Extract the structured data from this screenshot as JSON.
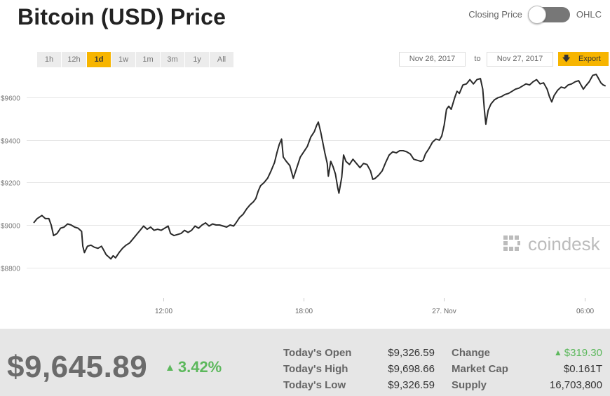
{
  "header": {
    "title": "Bitcoin (USD) Price",
    "toggle_left_label": "Closing Price",
    "toggle_right_label": "OHLC"
  },
  "ranges": [
    "1h",
    "12h",
    "1d",
    "1w",
    "1m",
    "3m",
    "1y",
    "All"
  ],
  "active_range": "1d",
  "date_range": {
    "from": "Nov 26, 2017",
    "to_label": "to",
    "to": "Nov 27, 2017"
  },
  "export": {
    "label": "Export",
    "icon": "download-arrow-icon"
  },
  "watermark": {
    "text": "coindesk",
    "color": "#bcbcbc"
  },
  "colors": {
    "accent": "#f7b500",
    "line": "#2a2a2a",
    "positive": "#5cb85c",
    "footer_bg": "#e6e6e6"
  },
  "chart_data": {
    "type": "line",
    "title": "",
    "xlabel": "",
    "ylabel": "",
    "x_unit": "hour offset from 2017-11-26 00:00",
    "x_ticks": [
      {
        "x": 12,
        "label": "12:00"
      },
      {
        "x": 18,
        "label": "18:00"
      },
      {
        "x": 24,
        "label": "27. Nov"
      },
      {
        "x": 30,
        "label": "06:00"
      }
    ],
    "y_ticks": [
      {
        "y": 8800,
        "label": "$8800"
      },
      {
        "y": 9000,
        "label": "$9000"
      },
      {
        "y": 9200,
        "label": "$9200"
      },
      {
        "y": 9400,
        "label": "$9400"
      },
      {
        "y": 9600,
        "label": "$9600"
      }
    ],
    "xlim": [
      6.45,
      31.0
    ],
    "ylim": [
      8640,
      9730
    ],
    "grid": true,
    "series": [
      {
        "values": [
          [
            6.45,
            9010
          ],
          [
            6.6,
            9030
          ],
          [
            6.8,
            9045
          ],
          [
            6.95,
            9030
          ],
          [
            7.1,
            9030
          ],
          [
            7.2,
            9000
          ],
          [
            7.3,
            8950
          ],
          [
            7.45,
            8960
          ],
          [
            7.6,
            8985
          ],
          [
            7.75,
            8990
          ],
          [
            7.9,
            9005
          ],
          [
            8.05,
            9000
          ],
          [
            8.2,
            8990
          ],
          [
            8.35,
            8985
          ],
          [
            8.5,
            8970
          ],
          [
            8.55,
            8900
          ],
          [
            8.62,
            8870
          ],
          [
            8.75,
            8900
          ],
          [
            8.9,
            8905
          ],
          [
            9.05,
            8895
          ],
          [
            9.2,
            8890
          ],
          [
            9.35,
            8900
          ],
          [
            9.45,
            8880
          ],
          [
            9.55,
            8860
          ],
          [
            9.65,
            8850
          ],
          [
            9.75,
            8840
          ],
          [
            9.85,
            8855
          ],
          [
            9.95,
            8845
          ],
          [
            10.1,
            8870
          ],
          [
            10.25,
            8890
          ],
          [
            10.4,
            8905
          ],
          [
            10.55,
            8915
          ],
          [
            10.7,
            8935
          ],
          [
            10.85,
            8955
          ],
          [
            11.0,
            8975
          ],
          [
            11.15,
            8995
          ],
          [
            11.3,
            8980
          ],
          [
            11.45,
            8990
          ],
          [
            11.6,
            8975
          ],
          [
            11.75,
            8980
          ],
          [
            11.9,
            8975
          ],
          [
            12.05,
            8985
          ],
          [
            12.2,
            8995
          ],
          [
            12.3,
            8960
          ],
          [
            12.45,
            8950
          ],
          [
            12.6,
            8955
          ],
          [
            12.75,
            8960
          ],
          [
            12.9,
            8975
          ],
          [
            13.05,
            8965
          ],
          [
            13.2,
            8975
          ],
          [
            13.35,
            8995
          ],
          [
            13.5,
            8985
          ],
          [
            13.65,
            9000
          ],
          [
            13.8,
            9010
          ],
          [
            13.95,
            8995
          ],
          [
            14.1,
            9005
          ],
          [
            14.25,
            9000
          ],
          [
            14.4,
            9000
          ],
          [
            14.55,
            8995
          ],
          [
            14.7,
            8990
          ],
          [
            14.85,
            9000
          ],
          [
            15.0,
            8995
          ],
          [
            15.1,
            9010
          ],
          [
            15.25,
            9035
          ],
          [
            15.4,
            9050
          ],
          [
            15.55,
            9075
          ],
          [
            15.7,
            9095
          ],
          [
            15.85,
            9110
          ],
          [
            15.95,
            9125
          ],
          [
            16.05,
            9160
          ],
          [
            16.15,
            9185
          ],
          [
            16.3,
            9200
          ],
          [
            16.45,
            9220
          ],
          [
            16.6,
            9255
          ],
          [
            16.75,
            9295
          ],
          [
            16.85,
            9340
          ],
          [
            16.95,
            9380
          ],
          [
            17.05,
            9405
          ],
          [
            17.12,
            9320
          ],
          [
            17.25,
            9300
          ],
          [
            17.4,
            9280
          ],
          [
            17.55,
            9220
          ],
          [
            17.7,
            9270
          ],
          [
            17.85,
            9320
          ],
          [
            18.0,
            9345
          ],
          [
            18.15,
            9370
          ],
          [
            18.3,
            9415
          ],
          [
            18.45,
            9440
          ],
          [
            18.55,
            9470
          ],
          [
            18.62,
            9485
          ],
          [
            18.72,
            9440
          ],
          [
            18.8,
            9395
          ],
          [
            18.9,
            9340
          ],
          [
            19.0,
            9290
          ],
          [
            19.05,
            9230
          ],
          [
            19.15,
            9300
          ],
          [
            19.25,
            9275
          ],
          [
            19.35,
            9240
          ],
          [
            19.45,
            9175
          ],
          [
            19.5,
            9150
          ],
          [
            19.62,
            9225
          ],
          [
            19.7,
            9330
          ],
          [
            19.8,
            9300
          ],
          [
            19.95,
            9285
          ],
          [
            20.1,
            9310
          ],
          [
            20.25,
            9290
          ],
          [
            20.4,
            9270
          ],
          [
            20.55,
            9290
          ],
          [
            20.7,
            9285
          ],
          [
            20.85,
            9255
          ],
          [
            20.95,
            9215
          ],
          [
            21.05,
            9220
          ],
          [
            21.2,
            9235
          ],
          [
            21.35,
            9255
          ],
          [
            21.5,
            9295
          ],
          [
            21.65,
            9330
          ],
          [
            21.8,
            9345
          ],
          [
            21.95,
            9340
          ],
          [
            22.1,
            9350
          ],
          [
            22.25,
            9350
          ],
          [
            22.4,
            9345
          ],
          [
            22.55,
            9335
          ],
          [
            22.7,
            9310
          ],
          [
            22.85,
            9305
          ],
          [
            23.0,
            9300
          ],
          [
            23.1,
            9305
          ],
          [
            23.2,
            9335
          ],
          [
            23.35,
            9360
          ],
          [
            23.5,
            9390
          ],
          [
            23.65,
            9405
          ],
          [
            23.8,
            9400
          ],
          [
            23.9,
            9420
          ],
          [
            24.0,
            9470
          ],
          [
            24.1,
            9545
          ],
          [
            24.2,
            9560
          ],
          [
            24.3,
            9545
          ],
          [
            24.45,
            9600
          ],
          [
            24.55,
            9630
          ],
          [
            24.65,
            9620
          ],
          [
            24.8,
            9660
          ],
          [
            24.95,
            9665
          ],
          [
            25.1,
            9685
          ],
          [
            25.25,
            9665
          ],
          [
            25.4,
            9685
          ],
          [
            25.55,
            9690
          ],
          [
            25.65,
            9640
          ],
          [
            25.72,
            9540
          ],
          [
            25.78,
            9475
          ],
          [
            25.88,
            9540
          ],
          [
            26.0,
            9570
          ],
          [
            26.15,
            9590
          ],
          [
            26.3,
            9600
          ],
          [
            26.45,
            9605
          ],
          [
            26.6,
            9615
          ],
          [
            26.75,
            9620
          ],
          [
            26.9,
            9630
          ],
          [
            27.05,
            9640
          ],
          [
            27.2,
            9645
          ],
          [
            27.35,
            9655
          ],
          [
            27.5,
            9665
          ],
          [
            27.65,
            9660
          ],
          [
            27.8,
            9675
          ],
          [
            27.95,
            9685
          ],
          [
            28.1,
            9665
          ],
          [
            28.25,
            9670
          ],
          [
            28.4,
            9640
          ],
          [
            28.5,
            9605
          ],
          [
            28.6,
            9580
          ],
          [
            28.7,
            9610
          ],
          [
            28.85,
            9635
          ],
          [
            29.0,
            9650
          ],
          [
            29.15,
            9645
          ],
          [
            29.3,
            9660
          ],
          [
            29.45,
            9665
          ],
          [
            29.6,
            9675
          ],
          [
            29.75,
            9680
          ],
          [
            29.85,
            9660
          ],
          [
            29.95,
            9640
          ],
          [
            30.05,
            9655
          ],
          [
            30.2,
            9675
          ],
          [
            30.35,
            9705
          ],
          [
            30.5,
            9710
          ],
          [
            30.6,
            9690
          ],
          [
            30.7,
            9670
          ],
          [
            30.8,
            9660
          ],
          [
            30.9,
            9655
          ]
        ]
      }
    ]
  },
  "stats": {
    "price": "$9,645.89",
    "change_pct": "3.42%",
    "rows": [
      {
        "label": "Today's Open",
        "value": "$9,326.59"
      },
      {
        "label": "Today's High",
        "value": "$9,698.66"
      },
      {
        "label": "Today's Low",
        "value": "$9,326.59"
      }
    ],
    "rows_right": [
      {
        "label": "Change",
        "value": "$319.30"
      },
      {
        "label": "Market Cap",
        "value": "$0.161T"
      },
      {
        "label": "Supply",
        "value": "16,703,800"
      }
    ]
  }
}
